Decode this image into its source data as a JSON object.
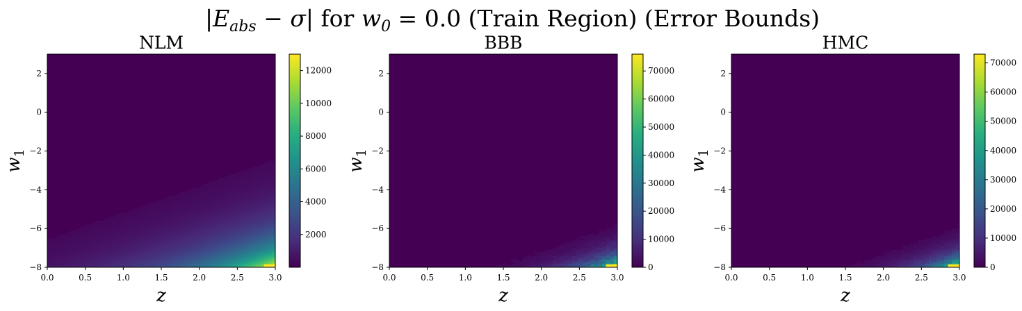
{
  "figure": {
    "title": "|E_abs − σ| for w_0 = 0.0 (Train Region) (Error Bounds)"
  },
  "chart_data": [
    {
      "type": "heatmap",
      "title": "NLM",
      "xlabel": "z",
      "ylabel": "w_1",
      "xlim": [
        0.0,
        3.0
      ],
      "ylim": [
        -8,
        3
      ],
      "xticks": [
        "0.0",
        "0.5",
        "1.0",
        "1.5",
        "2.0",
        "2.5",
        "3.0"
      ],
      "yticks": [
        "−8",
        "−6",
        "−4",
        "−2",
        "0",
        "2"
      ],
      "colorbar": {
        "min": 0,
        "max": 13000,
        "ticks": [
          "2000",
          "4000",
          "6000",
          "8000",
          "10000",
          "12000"
        ],
        "colormap": "viridis"
      },
      "peak_value": 13000,
      "peak_location": {
        "z": 3.0,
        "w_1": -8
      },
      "grid": false
    },
    {
      "type": "heatmap",
      "title": "BBB",
      "xlabel": "z",
      "ylabel": "w_1",
      "xlim": [
        0.0,
        3.0
      ],
      "ylim": [
        -8,
        3
      ],
      "xticks": [
        "0.0",
        "0.5",
        "1.0",
        "1.5",
        "2.0",
        "2.5",
        "3.0"
      ],
      "yticks": [
        "−8",
        "−6",
        "−4",
        "−2",
        "0",
        "2"
      ],
      "colorbar": {
        "min": 0,
        "max": 76000,
        "ticks": [
          "0",
          "10000",
          "20000",
          "30000",
          "40000",
          "50000",
          "60000",
          "70000"
        ],
        "colormap": "viridis"
      },
      "peak_value": 76000,
      "peak_location": {
        "z": 3.0,
        "w_1": -8
      },
      "grid": false
    },
    {
      "type": "heatmap",
      "title": "HMC",
      "xlabel": "z",
      "ylabel": "w_1",
      "xlim": [
        0.0,
        3.0
      ],
      "ylim": [
        -8,
        3
      ],
      "xticks": [
        "0.0",
        "0.5",
        "1.0",
        "1.5",
        "2.0",
        "2.5",
        "3.0"
      ],
      "yticks": [
        "−8",
        "−6",
        "−4",
        "−2",
        "0",
        "2"
      ],
      "colorbar": {
        "min": 0,
        "max": 73000,
        "ticks": [
          "0",
          "10000",
          "20000",
          "30000",
          "40000",
          "50000",
          "60000",
          "70000"
        ],
        "colormap": "viridis"
      },
      "peak_value": 73000,
      "peak_location": {
        "z": 3.0,
        "w_1": -8
      },
      "grid": false
    }
  ]
}
